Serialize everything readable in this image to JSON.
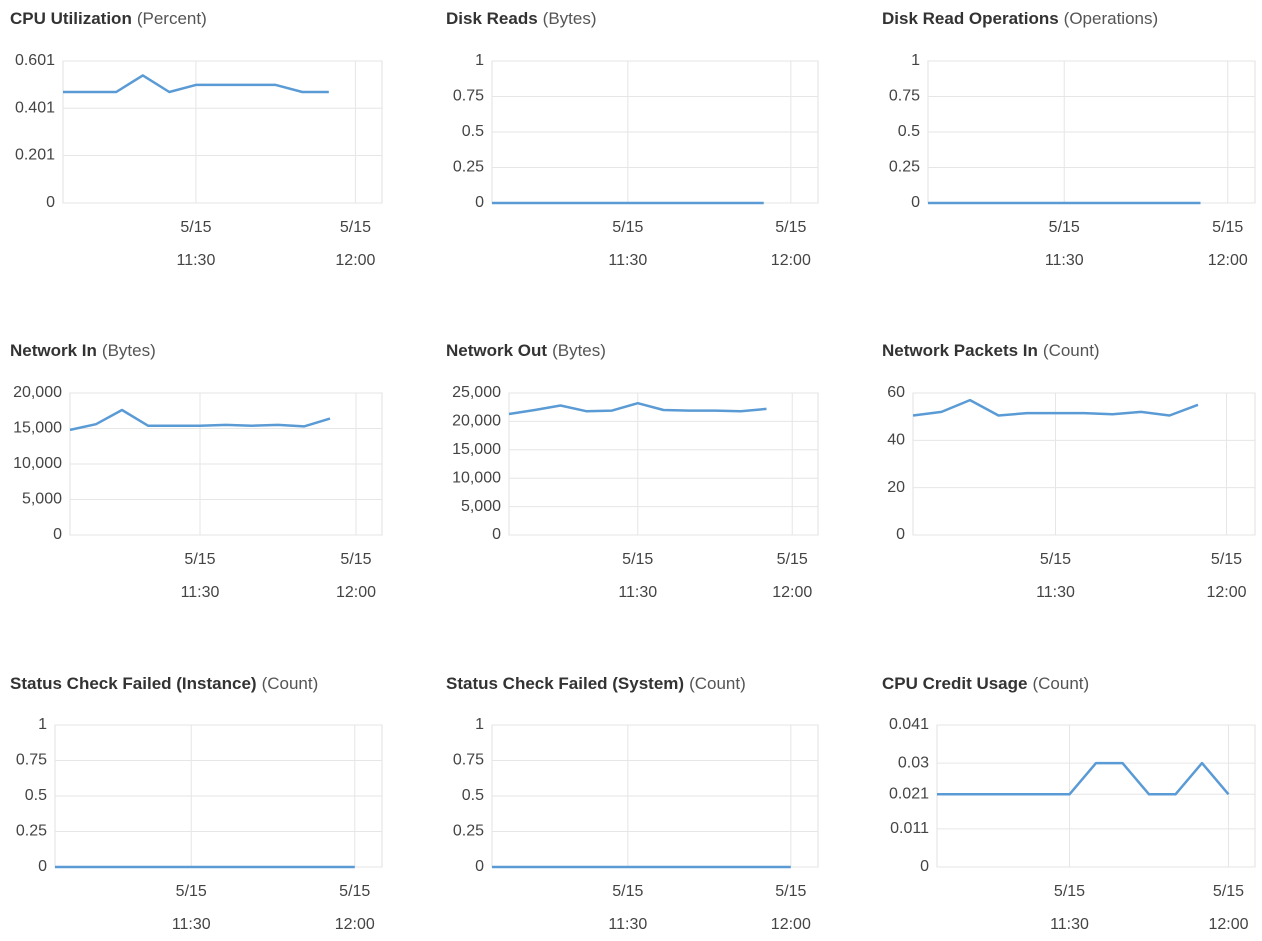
{
  "chart_data": [
    {
      "type": "line",
      "title": "CPU Utilization",
      "unit": "(Percent)",
      "color": "#5b9bd5",
      "x": [
        "5/15 11:05",
        "5/15 11:10",
        "5/15 11:15",
        "5/15 11:20",
        "5/15 11:25",
        "5/15 11:30",
        "5/15 11:35",
        "5/15 11:40",
        "5/15 11:45",
        "5/15 11:50",
        "5/15 11:55"
      ],
      "values": [
        0.47,
        0.47,
        0.47,
        0.54,
        0.47,
        0.5,
        0.5,
        0.5,
        0.5,
        0.47,
        0.47
      ],
      "xlim": [
        "5/15 11:05",
        "5/15 12:05"
      ],
      "xticks": [
        "5/15 11:30",
        "5/15 12:00"
      ],
      "ylim": [
        0,
        0.601
      ],
      "yticks": [
        0,
        0.201,
        0.401,
        0.601
      ],
      "grid": true
    },
    {
      "type": "line",
      "title": "Disk Reads",
      "unit": "(Bytes)",
      "color": "#5b9bd5",
      "x": [
        "5/15 11:05",
        "5/15 11:10",
        "5/15 11:15",
        "5/15 11:20",
        "5/15 11:25",
        "5/15 11:30",
        "5/15 11:35",
        "5/15 11:40",
        "5/15 11:45",
        "5/15 11:50",
        "5/15 11:55"
      ],
      "values": [
        0,
        0,
        0,
        0,
        0,
        0,
        0,
        0,
        0,
        0,
        0
      ],
      "xlim": [
        "5/15 11:05",
        "5/15 12:05"
      ],
      "xticks": [
        "5/15 11:30",
        "5/15 12:00"
      ],
      "ylim": [
        0,
        1
      ],
      "yticks": [
        0,
        0.25,
        0.5,
        0.75,
        1
      ],
      "grid": true
    },
    {
      "type": "line",
      "title": "Disk Read Operations",
      "unit": "(Operations)",
      "color": "#5b9bd5",
      "x": [
        "5/15 11:05",
        "5/15 11:10",
        "5/15 11:15",
        "5/15 11:20",
        "5/15 11:25",
        "5/15 11:30",
        "5/15 11:35",
        "5/15 11:40",
        "5/15 11:45",
        "5/15 11:50",
        "5/15 11:55"
      ],
      "values": [
        0,
        0,
        0,
        0,
        0,
        0,
        0,
        0,
        0,
        0,
        0
      ],
      "xlim": [
        "5/15 11:05",
        "5/15 12:05"
      ],
      "xticks": [
        "5/15 11:30",
        "5/15 12:00"
      ],
      "ylim": [
        0,
        1
      ],
      "yticks": [
        0,
        0.25,
        0.5,
        0.75,
        1
      ],
      "grid": true
    },
    {
      "type": "line",
      "title": "Network In",
      "unit": "(Bytes)",
      "color": "#5b9bd5",
      "x": [
        "5/15 11:05",
        "5/15 11:10",
        "5/15 11:15",
        "5/15 11:20",
        "5/15 11:25",
        "5/15 11:30",
        "5/15 11:35",
        "5/15 11:40",
        "5/15 11:45",
        "5/15 11:50",
        "5/15 11:55"
      ],
      "values": [
        14800,
        15600,
        17600,
        15400,
        15400,
        15400,
        15500,
        15400,
        15500,
        15300,
        16400
      ],
      "xlim": [
        "5/15 11:05",
        "5/15 12:05"
      ],
      "xticks": [
        "5/15 11:30",
        "5/15 12:00"
      ],
      "ylim": [
        0,
        20000
      ],
      "yticks": [
        0,
        {
          "value": 5000,
          "label": "5,000"
        },
        {
          "value": 10000,
          "label": "10,000"
        },
        {
          "value": 15000,
          "label": "15,000"
        },
        {
          "value": 20000,
          "label": "20,000"
        }
      ],
      "grid": true
    },
    {
      "type": "line",
      "title": "Network Out",
      "unit": "(Bytes)",
      "color": "#5b9bd5",
      "x": [
        "5/15 11:05",
        "5/15 11:10",
        "5/15 11:15",
        "5/15 11:20",
        "5/15 11:25",
        "5/15 11:30",
        "5/15 11:35",
        "5/15 11:40",
        "5/15 11:45",
        "5/15 11:50",
        "5/15 11:55"
      ],
      "values": [
        21300,
        22000,
        22800,
        21800,
        21900,
        23200,
        22000,
        21900,
        21900,
        21800,
        22200
      ],
      "xlim": [
        "5/15 11:05",
        "5/15 12:05"
      ],
      "xticks": [
        "5/15 11:30",
        "5/15 12:00"
      ],
      "ylim": [
        0,
        25000
      ],
      "yticks": [
        0,
        {
          "value": 5000,
          "label": "5,000"
        },
        {
          "value": 10000,
          "label": "10,000"
        },
        {
          "value": 15000,
          "label": "15,000"
        },
        {
          "value": 20000,
          "label": "20,000"
        },
        {
          "value": 25000,
          "label": "25,000"
        }
      ],
      "grid": true
    },
    {
      "type": "line",
      "title": "Network Packets In",
      "unit": "(Count)",
      "color": "#5b9bd5",
      "x": [
        "5/15 11:05",
        "5/15 11:10",
        "5/15 11:15",
        "5/15 11:20",
        "5/15 11:25",
        "5/15 11:30",
        "5/15 11:35",
        "5/15 11:40",
        "5/15 11:45",
        "5/15 11:50",
        "5/15 11:55"
      ],
      "values": [
        50.5,
        52,
        57,
        50.5,
        51.5,
        51.5,
        51.5,
        51,
        52,
        50.5,
        55
      ],
      "xlim": [
        "5/15 11:05",
        "5/15 12:05"
      ],
      "xticks": [
        "5/15 11:30",
        "5/15 12:00"
      ],
      "ylim": [
        0,
        60
      ],
      "yticks": [
        0,
        20,
        40,
        60
      ],
      "grid": true
    },
    {
      "type": "line",
      "title": "Status Check Failed (Instance)",
      "unit": "(Count)",
      "color": "#5b9bd5",
      "x": [
        "5/15 11:05",
        "5/15 11:10",
        "5/15 11:15",
        "5/15 11:20",
        "5/15 11:25",
        "5/15 11:30",
        "5/15 11:35",
        "5/15 11:40",
        "5/15 11:45",
        "5/15 11:50",
        "5/15 11:55",
        "5/15 12:00"
      ],
      "values": [
        0,
        0,
        0,
        0,
        0,
        0,
        0,
        0,
        0,
        0,
        0,
        0
      ],
      "xlim": [
        "5/15 11:05",
        "5/15 12:05"
      ],
      "xticks": [
        "5/15 11:30",
        "5/15 12:00"
      ],
      "ylim": [
        0,
        1
      ],
      "yticks": [
        0,
        0.25,
        0.5,
        0.75,
        1
      ],
      "grid": true
    },
    {
      "type": "line",
      "title": "Status Check Failed (System)",
      "unit": "(Count)",
      "color": "#5b9bd5",
      "x": [
        "5/15 11:05",
        "5/15 11:10",
        "5/15 11:15",
        "5/15 11:20",
        "5/15 11:25",
        "5/15 11:30",
        "5/15 11:35",
        "5/15 11:40",
        "5/15 11:45",
        "5/15 11:50",
        "5/15 11:55",
        "5/15 12:00"
      ],
      "values": [
        0,
        0,
        0,
        0,
        0,
        0,
        0,
        0,
        0,
        0,
        0,
        0
      ],
      "xlim": [
        "5/15 11:05",
        "5/15 12:05"
      ],
      "xticks": [
        "5/15 11:30",
        "5/15 12:00"
      ],
      "ylim": [
        0,
        1
      ],
      "yticks": [
        0,
        0.25,
        0.5,
        0.75,
        1
      ],
      "grid": true
    },
    {
      "type": "line",
      "title": "CPU Credit Usage",
      "unit": "(Count)",
      "color": "#5b9bd5",
      "x": [
        "5/15 11:05",
        "5/15 11:10",
        "5/15 11:15",
        "5/15 11:20",
        "5/15 11:25",
        "5/15 11:30",
        "5/15 11:35",
        "5/15 11:40",
        "5/15 11:45",
        "5/15 11:50",
        "5/15 11:55",
        "5/15 12:00"
      ],
      "values": [
        0.021,
        0.021,
        0.021,
        0.021,
        0.021,
        0.021,
        0.03,
        0.03,
        0.021,
        0.021,
        0.03,
        0.021
      ],
      "xlim": [
        "5/15 11:05",
        "5/15 12:05"
      ],
      "xticks": [
        "5/15 11:30",
        "5/15 12:00"
      ],
      "ylim": [
        0,
        0.041
      ],
      "yticks": [
        0,
        0.011,
        0.021,
        0.03,
        0.041
      ],
      "grid": true
    }
  ]
}
